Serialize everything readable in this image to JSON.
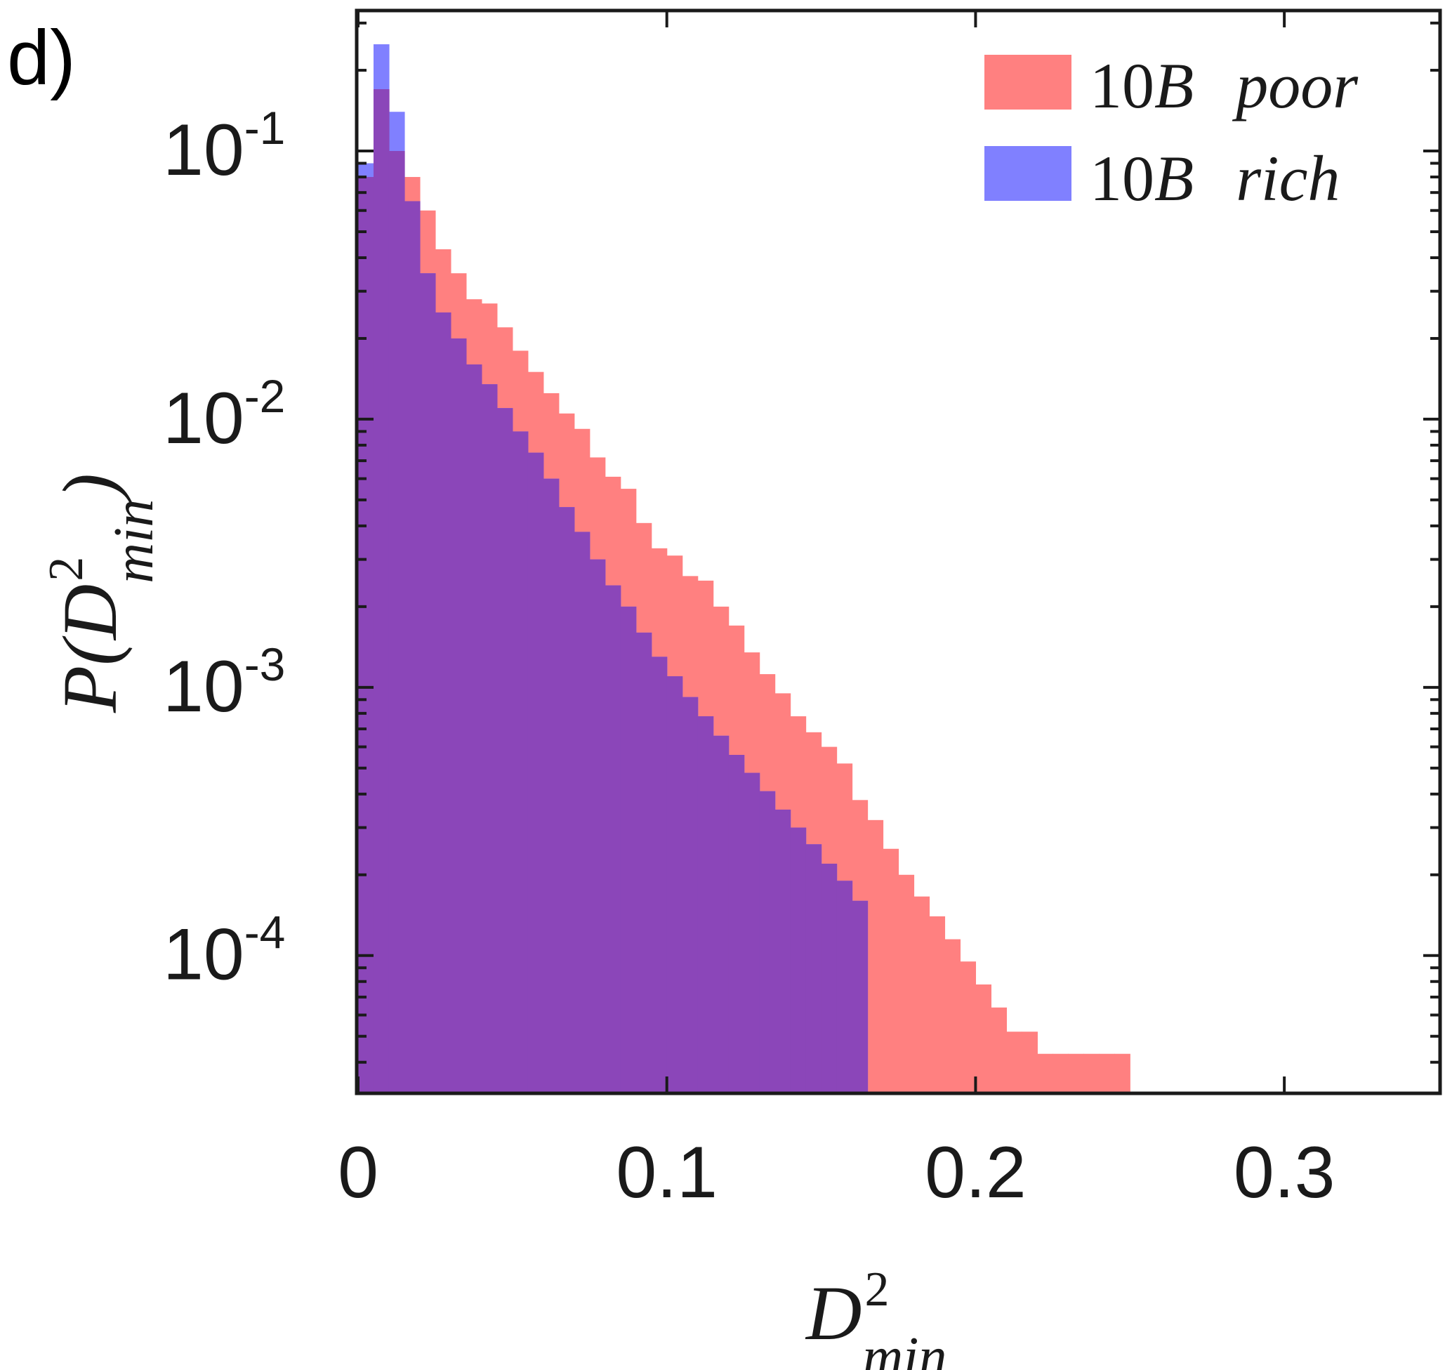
{
  "panel_label": "d)",
  "colors": {
    "poor": "#ff8080",
    "rich": "#8080ff",
    "overlap": "#8b46b9",
    "axis": "#1a1a1a"
  },
  "chart_data": {
    "type": "bar",
    "title": "",
    "xlabel": "D²_min",
    "ylabel": "P(D²_min)",
    "xscale": "linear",
    "yscale": "log",
    "xlim": [
      0,
      0.35
    ],
    "ylim": [
      3.1e-05,
      0.33
    ],
    "grid": false,
    "legend_position": "top-right",
    "x_ticks": [
      {
        "value": 0,
        "label": "0"
      },
      {
        "value": 0.1,
        "label": "0.1"
      },
      {
        "value": 0.2,
        "label": "0.2"
      },
      {
        "value": 0.3,
        "label": "0.3"
      }
    ],
    "y_ticks": [
      {
        "value": 0.1,
        "base": "10",
        "exp": "-1"
      },
      {
        "value": 0.01,
        "base": "10",
        "exp": "-2"
      },
      {
        "value": 0.001,
        "base": "10",
        "exp": "-3"
      },
      {
        "value": 0.0001,
        "base": "10",
        "exp": "-4"
      }
    ],
    "axis_labels": {
      "x": {
        "main": "D",
        "sup": "2",
        "sub": "min"
      },
      "y": {
        "prefix": "P(",
        "main": "D",
        "sup": "2",
        "sub": "min",
        "suffix": ")"
      }
    },
    "bin_width": 0.005,
    "series": [
      {
        "name": "poor",
        "label": {
          "num": "10",
          "var": "B",
          "word": "poor"
        },
        "color": "#ff8080",
        "bins": [
          [
            0.0,
            0.08
          ],
          [
            0.005,
            0.17
          ],
          [
            0.01,
            0.1
          ],
          [
            0.015,
            0.08
          ],
          [
            0.02,
            0.06
          ],
          [
            0.025,
            0.043
          ],
          [
            0.03,
            0.035
          ],
          [
            0.035,
            0.028
          ],
          [
            0.04,
            0.027
          ],
          [
            0.045,
            0.022
          ],
          [
            0.05,
            0.018
          ],
          [
            0.055,
            0.015
          ],
          [
            0.06,
            0.0125
          ],
          [
            0.065,
            0.0105
          ],
          [
            0.07,
            0.0092
          ],
          [
            0.075,
            0.0072
          ],
          [
            0.08,
            0.0061
          ],
          [
            0.085,
            0.0055
          ],
          [
            0.09,
            0.0041
          ],
          [
            0.095,
            0.0033
          ],
          [
            0.1,
            0.0031
          ],
          [
            0.105,
            0.0026
          ],
          [
            0.11,
            0.0025
          ],
          [
            0.115,
            0.002
          ],
          [
            0.12,
            0.0017
          ],
          [
            0.125,
            0.00135
          ],
          [
            0.13,
            0.00112
          ],
          [
            0.135,
            0.00095
          ],
          [
            0.14,
            0.00078
          ],
          [
            0.145,
            0.00068
          ],
          [
            0.15,
            0.0006
          ],
          [
            0.155,
            0.00052
          ],
          [
            0.16,
            0.00038
          ],
          [
            0.165,
            0.00032
          ],
          [
            0.17,
            0.00025
          ],
          [
            0.175,
            0.0002
          ],
          [
            0.18,
            0.000166
          ],
          [
            0.185,
            0.00014
          ],
          [
            0.19,
            0.000115
          ],
          [
            0.195,
            9.5e-05
          ],
          [
            0.2,
            7.8e-05
          ],
          [
            0.205,
            6.4e-05
          ],
          [
            0.21,
            5.2e-05
          ],
          [
            0.215,
            5.2e-05
          ],
          [
            0.22,
            4.3e-05
          ],
          [
            0.225,
            4.3e-05
          ],
          [
            0.23,
            4.3e-05
          ],
          [
            0.235,
            4.3e-05
          ],
          [
            0.24,
            4.3e-05
          ],
          [
            0.245,
            4.3e-05
          ]
        ]
      },
      {
        "name": "rich",
        "label": {
          "num": "10",
          "var": "B",
          "word": "rich"
        },
        "color": "#8080ff",
        "bins": [
          [
            0.0,
            0.09
          ],
          [
            0.005,
            0.25
          ],
          [
            0.01,
            0.14
          ],
          [
            0.015,
            0.065
          ],
          [
            0.02,
            0.035
          ],
          [
            0.025,
            0.025
          ],
          [
            0.03,
            0.02
          ],
          [
            0.035,
            0.016
          ],
          [
            0.04,
            0.0135
          ],
          [
            0.045,
            0.011
          ],
          [
            0.05,
            0.009
          ],
          [
            0.055,
            0.0075
          ],
          [
            0.06,
            0.006
          ],
          [
            0.065,
            0.0047
          ],
          [
            0.07,
            0.0038
          ],
          [
            0.075,
            0.003
          ],
          [
            0.08,
            0.0024
          ],
          [
            0.085,
            0.002
          ],
          [
            0.09,
            0.0016
          ],
          [
            0.095,
            0.0013
          ],
          [
            0.1,
            0.0011
          ],
          [
            0.105,
            0.00092
          ],
          [
            0.11,
            0.00078
          ],
          [
            0.115,
            0.00066
          ],
          [
            0.12,
            0.00056
          ],
          [
            0.125,
            0.00048
          ],
          [
            0.13,
            0.00041
          ],
          [
            0.135,
            0.00035
          ],
          [
            0.14,
            0.0003
          ],
          [
            0.145,
            0.00026
          ],
          [
            0.15,
            0.00022
          ],
          [
            0.155,
            0.00019
          ],
          [
            0.16,
            0.00016
          ]
        ]
      }
    ]
  }
}
